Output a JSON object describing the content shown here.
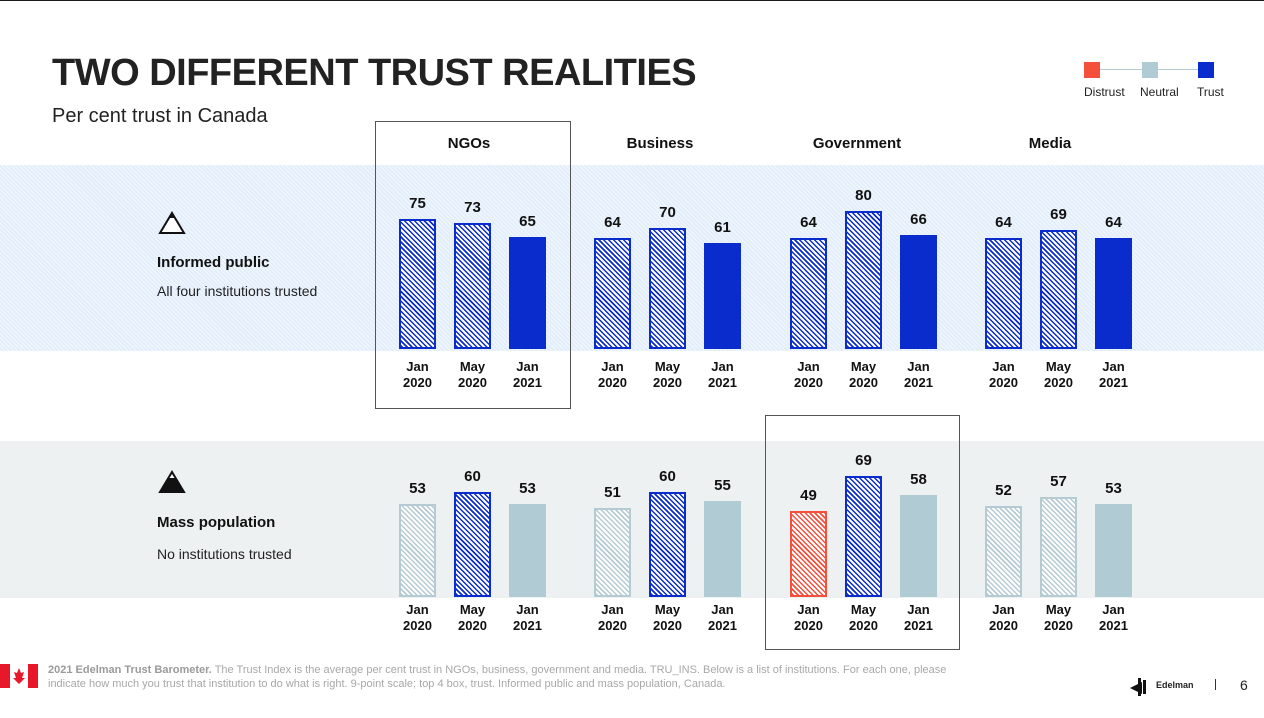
{
  "header": {
    "title": "TWO DIFFERENT TRUST REALITIES",
    "subtitle": "Per cent trust in Canada"
  },
  "legend": {
    "items": [
      {
        "label": "Distrust",
        "color": "#f4503c"
      },
      {
        "label": "Neutral",
        "color": "#b1cbd4"
      },
      {
        "label": "Trust",
        "color": "#0a2ccc"
      }
    ]
  },
  "groups": {
    "informed": {
      "label": "Informed public",
      "desc": "All four institutions trusted",
      "icon": "triangle-outline-icon"
    },
    "mass": {
      "label": "Mass population",
      "desc": "No institutions trusted",
      "icon": "mountain-icon"
    }
  },
  "chart_data": {
    "type": "bar",
    "institutions": [
      "NGOs",
      "Business",
      "Government",
      "Media"
    ],
    "categories": [
      [
        "Jan",
        "2020"
      ],
      [
        "May",
        "2020"
      ],
      [
        "Jan",
        "2021"
      ]
    ],
    "series": [
      {
        "name": "Informed public",
        "values": [
          [
            75,
            73,
            65
          ],
          [
            64,
            70,
            61
          ],
          [
            64,
            80,
            66
          ],
          [
            64,
            69,
            64
          ]
        ],
        "status": [
          [
            "trust",
            "trust",
            "trust"
          ],
          [
            "trust",
            "trust",
            "trust"
          ],
          [
            "trust",
            "trust",
            "trust"
          ],
          [
            "trust",
            "trust",
            "trust"
          ]
        ]
      },
      {
        "name": "Mass population",
        "values": [
          [
            53,
            60,
            53
          ],
          [
            51,
            60,
            55
          ],
          [
            49,
            69,
            58
          ],
          [
            52,
            57,
            53
          ]
        ],
        "status": [
          [
            "neutral",
            "trust",
            "neutral"
          ],
          [
            "neutral",
            "trust",
            "neutral"
          ],
          [
            "distrust",
            "trust",
            "neutral"
          ],
          [
            "neutral",
            "neutral",
            "neutral"
          ]
        ]
      }
    ],
    "highlighted": [
      {
        "series": "Informed public",
        "institution": "NGOs"
      },
      {
        "series": "Mass population",
        "institution": "Government"
      }
    ]
  },
  "footer": {
    "source_bold": "2021 Edelman Trust Barometer.",
    "source_text": " The Trust Index is the average per cent trust in NGOs, business, government and media. TRU_INS. Below is a list of institutions. For each one, please indicate how much you trust that institution to do what is right. 9-point scale; top 4 box, trust. Informed public and mass population, Canada.",
    "brand": "Edelman",
    "page_number": "6"
  }
}
